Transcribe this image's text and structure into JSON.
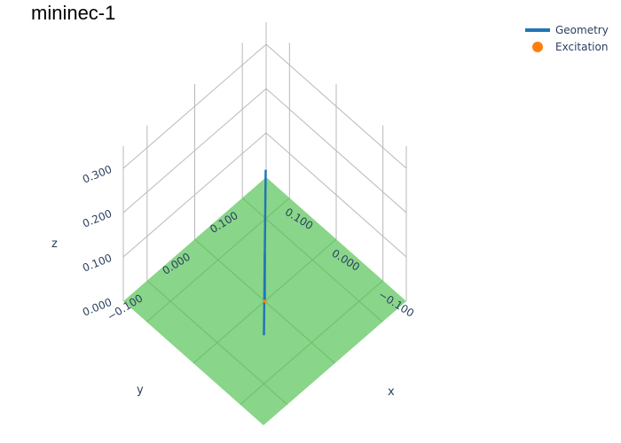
{
  "chart_data": {
    "type": "scatter3d",
    "title": "mininec-1",
    "axes": {
      "x": {
        "label": "x",
        "range": [
          -0.15,
          0.15
        ],
        "ticks": [
          -0.1,
          0.0,
          0.1
        ],
        "tick_labels": [
          "−0.100",
          "0.000",
          "0.100"
        ]
      },
      "y": {
        "label": "y",
        "range": [
          -0.15,
          0.15
        ],
        "ticks": [
          -0.1,
          0.0,
          0.1
        ],
        "tick_labels": [
          "−0.100",
          "0.000",
          "0.100"
        ]
      },
      "z": {
        "label": "z",
        "range": [
          0,
          0.35
        ],
        "ticks": [
          0.0,
          0.1,
          0.2,
          0.3
        ],
        "tick_labels": [
          "0.000",
          "0.100",
          "0.200",
          "0.300"
        ]
      }
    },
    "grid": true,
    "ground_plane": {
      "z": 0.0,
      "color": "#7fd17f"
    },
    "series": [
      {
        "name": "Geometry",
        "mode": "lines",
        "color": "#1f77b4",
        "segments": [
          {
            "x": [
              0,
              0
            ],
            "y": [
              0,
              0
            ],
            "z": [
              0,
              0.11
            ]
          },
          {
            "x": [
              -0.1,
              0.1
            ],
            "y": [
              -0.1,
              0.1
            ],
            "z": [
              0.11,
              0.11
            ]
          }
        ]
      },
      {
        "name": "Excitation",
        "mode": "markers",
        "color": "#ff7f0e",
        "x": [
          0
        ],
        "y": [
          0
        ],
        "z": [
          0
        ]
      }
    ],
    "legend": {
      "position": "top-right"
    }
  }
}
